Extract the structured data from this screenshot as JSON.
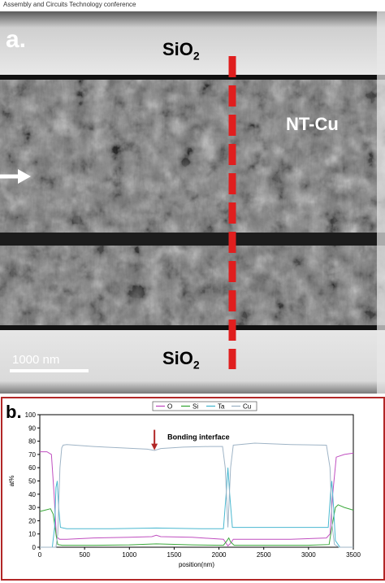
{
  "header": {
    "text": "Assembly and Circuits Technology conference"
  },
  "panel_a": {
    "label": "a.",
    "top_layer": {
      "text": "SiO",
      "sub": "2"
    },
    "bottom_layer": {
      "text": "SiO",
      "sub": "2"
    },
    "material_label": "NT-Cu",
    "scale_bar": "1000 nm",
    "colors": {
      "cut_line": "#e01e1e",
      "arrow": "#ffffff"
    }
  },
  "panel_b": {
    "label": "b.",
    "chart_data": {
      "type": "line",
      "xlabel": "position(nm)",
      "ylabel": "at%",
      "xlim": [
        0,
        3500
      ],
      "ylim": [
        0,
        100
      ],
      "xticks": [
        0,
        500,
        1000,
        1500,
        2000,
        2500,
        3000,
        3500
      ],
      "yticks": [
        0,
        10,
        20,
        30,
        40,
        50,
        60,
        70,
        80,
        90,
        100
      ],
      "legend_position": "top-center",
      "annotation": {
        "text": "Bonding interface",
        "x": 1280,
        "y": 80
      },
      "series": [
        {
          "name": "O",
          "color": "#c04fc0",
          "points": [
            [
              0,
              72
            ],
            [
              80,
              72
            ],
            [
              130,
              70
            ],
            [
              160,
              40
            ],
            [
              185,
              8
            ],
            [
              220,
              6
            ],
            [
              300,
              6
            ],
            [
              600,
              7
            ],
            [
              1000,
              7.5
            ],
            [
              1250,
              8
            ],
            [
              1300,
              9
            ],
            [
              1350,
              8
            ],
            [
              1700,
              7.5
            ],
            [
              2050,
              6
            ],
            [
              2080,
              3
            ],
            [
              2100,
              1
            ],
            [
              2130,
              3
            ],
            [
              2160,
              6
            ],
            [
              2400,
              6
            ],
            [
              2800,
              6
            ],
            [
              3200,
              7
            ],
            [
              3240,
              10
            ],
            [
              3270,
              40
            ],
            [
              3310,
              68
            ],
            [
              3400,
              70
            ],
            [
              3500,
              71
            ]
          ]
        },
        {
          "name": "Si",
          "color": "#3aa83a",
          "points": [
            [
              0,
              27
            ],
            [
              60,
              28
            ],
            [
              120,
              29
            ],
            [
              150,
              25
            ],
            [
              180,
              10
            ],
            [
              200,
              2
            ],
            [
              250,
              1.5
            ],
            [
              600,
              1.5
            ],
            [
              1000,
              1.8
            ],
            [
              1300,
              2.5
            ],
            [
              1700,
              1.8
            ],
            [
              2050,
              1.5
            ],
            [
              2090,
              5
            ],
            [
              2110,
              7
            ],
            [
              2130,
              4
            ],
            [
              2170,
              1.5
            ],
            [
              2600,
              1.5
            ],
            [
              3000,
              1.5
            ],
            [
              3230,
              2
            ],
            [
              3260,
              15
            ],
            [
              3300,
              30
            ],
            [
              3330,
              32
            ],
            [
              3400,
              30
            ],
            [
              3500,
              28
            ]
          ]
        },
        {
          "name": "Ta",
          "color": "#4ab8d0",
          "points": [
            [
              0,
              0
            ],
            [
              140,
              0
            ],
            [
              165,
              15
            ],
            [
              180,
              45
            ],
            [
              195,
              50
            ],
            [
              210,
              30
            ],
            [
              230,
              15
            ],
            [
              300,
              14
            ],
            [
              800,
              14
            ],
            [
              1300,
              14.5
            ],
            [
              1800,
              14
            ],
            [
              2050,
              14
            ],
            [
              2080,
              40
            ],
            [
              2100,
              60
            ],
            [
              2120,
              40
            ],
            [
              2150,
              15
            ],
            [
              2500,
              15
            ],
            [
              3000,
              15
            ],
            [
              3220,
              15
            ],
            [
              3245,
              40
            ],
            [
              3260,
              50
            ],
            [
              3280,
              30
            ],
            [
              3300,
              5
            ],
            [
              3350,
              0
            ],
            [
              3500,
              0
            ]
          ]
        },
        {
          "name": "Cu",
          "color": "#9fb4c6",
          "points": [
            [
              0,
              0
            ],
            [
              180,
              0
            ],
            [
              200,
              10
            ],
            [
              225,
              60
            ],
            [
              245,
              75
            ],
            [
              260,
              77
            ],
            [
              300,
              77.5
            ],
            [
              600,
              76
            ],
            [
              900,
              75
            ],
            [
              1200,
              74
            ],
            [
              1280,
              73
            ],
            [
              1350,
              74.5
            ],
            [
              1600,
              75.5
            ],
            [
              1900,
              76
            ],
            [
              2040,
              76
            ],
            [
              2070,
              60
            ],
            [
              2100,
              15
            ],
            [
              2130,
              60
            ],
            [
              2160,
              77
            ],
            [
              2400,
              78.5
            ],
            [
              2800,
              77.5
            ],
            [
              3200,
              77
            ],
            [
              3240,
              60
            ],
            [
              3265,
              15
            ],
            [
              3290,
              2
            ],
            [
              3340,
              0
            ],
            [
              3500,
              0
            ]
          ]
        }
      ]
    }
  }
}
